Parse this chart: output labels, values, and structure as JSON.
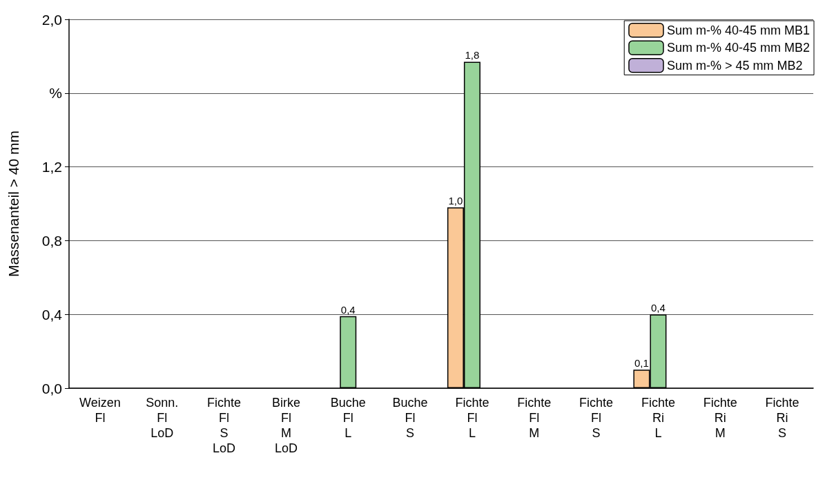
{
  "chart_data": {
    "type": "bar",
    "ylabel": "Massenanteil > 40 mm",
    "categories": [
      "Weizen\nFl",
      "Sonn.\nFl\nLoD",
      "Fichte\nFl\nS\nLoD",
      "Birke\nFl\nM\nLoD",
      "Buche\nFl\nL",
      "Buche\nFl\nS",
      "Fichte\nFl\nL",
      "Fichte\nFl\nM",
      "Fichte\nFl\nS",
      "Fichte\nRi\nL",
      "Fichte\nRi\nM",
      "Fichte\nRi\nS"
    ],
    "series": [
      {
        "name": "Sum m-% 40-45 mm MB1",
        "color": "#fac896",
        "values": [
          null,
          null,
          null,
          null,
          null,
          null,
          0.98,
          null,
          null,
          0.1,
          null,
          null
        ],
        "value_labels": [
          null,
          null,
          null,
          null,
          null,
          null,
          "1,0",
          null,
          null,
          "0,1",
          null,
          null
        ]
      },
      {
        "name": "Sum m-% 40-45 mm MB2",
        "color": "#98d49a",
        "values": [
          null,
          null,
          null,
          null,
          0.39,
          null,
          1.77,
          null,
          null,
          0.4,
          null,
          null
        ],
        "value_labels": [
          null,
          null,
          null,
          null,
          "0,4",
          null,
          "1,8",
          null,
          null,
          "0,4",
          null,
          null
        ]
      },
      {
        "name": "Sum m-% > 45 mm MB2",
        "color": "#c0b0d8",
        "values": [
          null,
          null,
          null,
          null,
          null,
          null,
          null,
          null,
          null,
          null,
          null,
          null
        ]
      }
    ],
    "ylim": [
      0,
      2.0
    ],
    "yticks": [
      {
        "value": 0,
        "label": "0,0"
      },
      {
        "value": 0.4,
        "label": "0,4"
      },
      {
        "value": 0.8,
        "label": "0,8"
      },
      {
        "value": 1.2,
        "label": "1,2"
      },
      {
        "value": 1.6,
        "label": "%"
      },
      {
        "value": 2.0,
        "label": "2,0"
      }
    ],
    "grid": "y",
    "legend": "top right"
  }
}
